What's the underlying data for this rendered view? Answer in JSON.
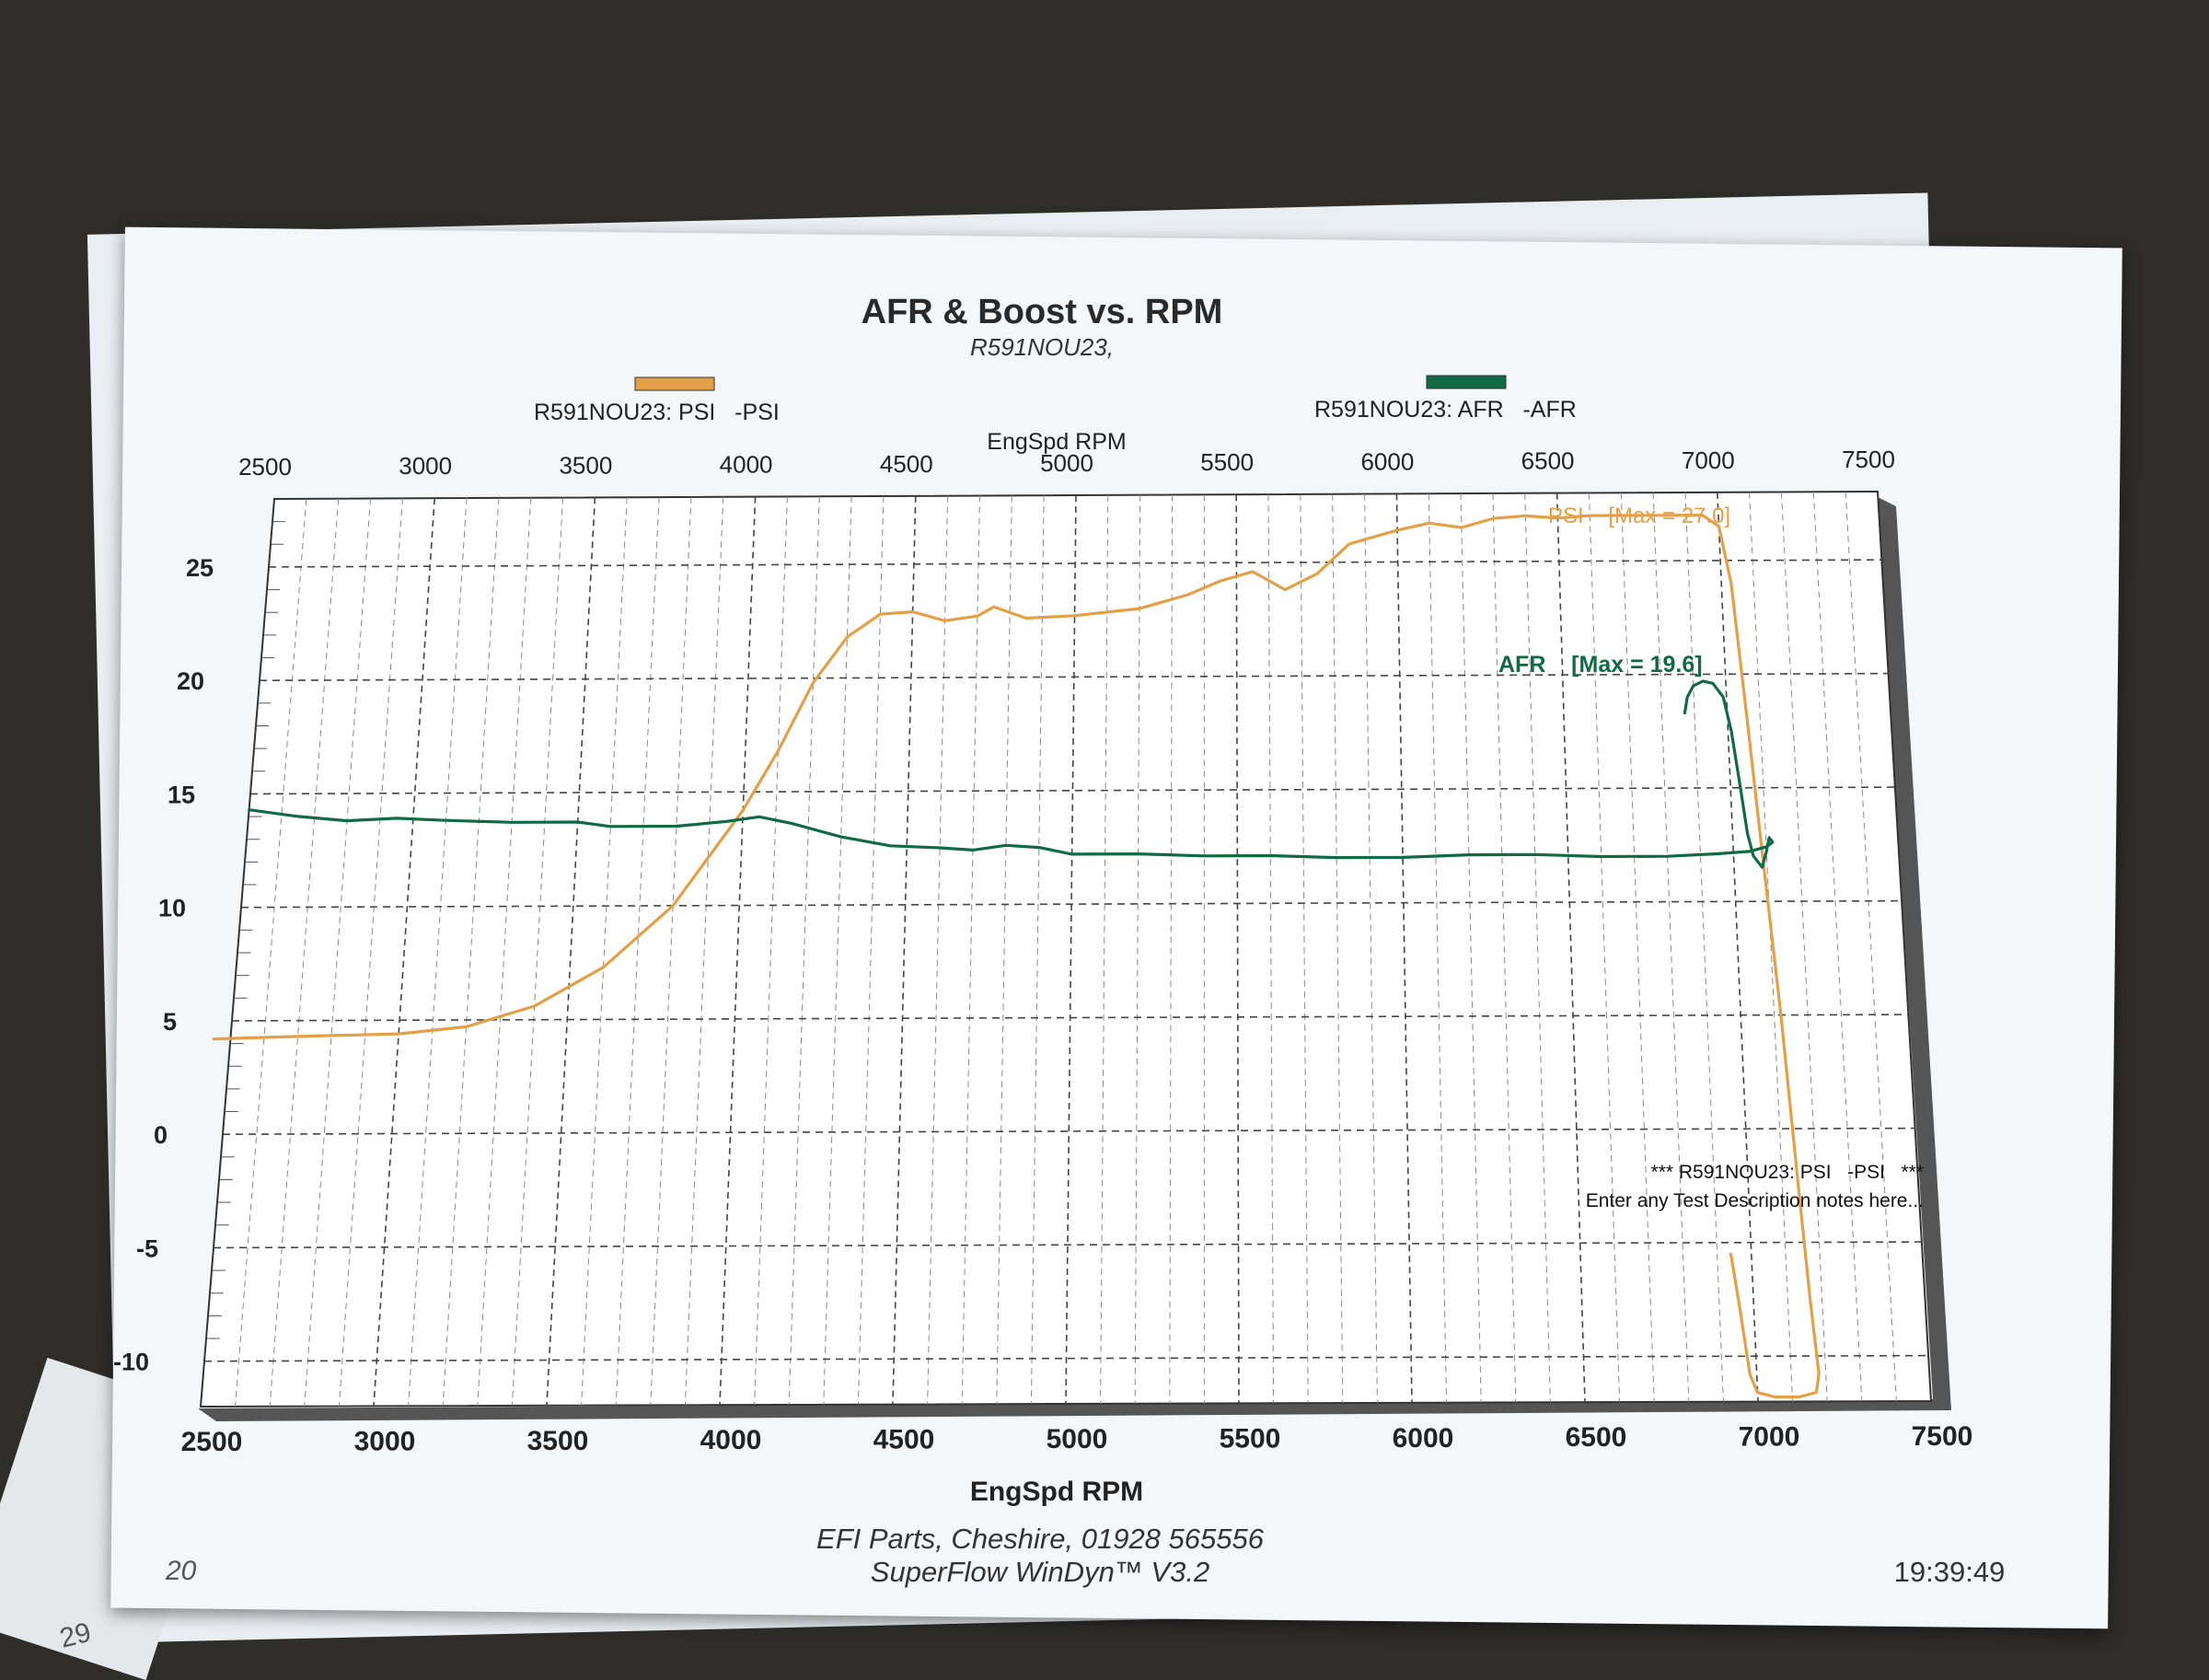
{
  "chart_data": {
    "type": "line",
    "title": "AFR & Boost vs. RPM",
    "subtitle": "R591NOU23,",
    "legend": [
      {
        "name": "R591NOU23: PSI   -PSI",
        "color": "#e3a047"
      },
      {
        "name": "R591NOU23: AFR   -AFR",
        "color": "#0f6a45"
      }
    ],
    "xlabel": "EngSpd RPM",
    "xlabel_top": "EngSpd RPM",
    "xlim": [
      2500,
      7500
    ],
    "ylim": [
      -12,
      28
    ],
    "x_ticks": [
      "2500",
      "3000",
      "3500",
      "4000",
      "4500",
      "5000",
      "5500",
      "6000",
      "6500",
      "7000",
      "7500"
    ],
    "y_ticks": [
      "25",
      "20",
      "15",
      "10",
      "5",
      "0",
      "-5",
      "-10"
    ],
    "grid": true,
    "series": [
      {
        "name": "PSI",
        "color": "#e3a047",
        "points": [
          [
            2450,
            4.2
          ],
          [
            2700,
            4.3
          ],
          [
            3000,
            4.4
          ],
          [
            3200,
            4.7
          ],
          [
            3400,
            5.6
          ],
          [
            3600,
            7.3
          ],
          [
            3800,
            10.0
          ],
          [
            4000,
            14.2
          ],
          [
            4100,
            16.8
          ],
          [
            4200,
            19.8
          ],
          [
            4300,
            21.8
          ],
          [
            4400,
            22.8
          ],
          [
            4500,
            22.9
          ],
          [
            4600,
            22.5
          ],
          [
            4700,
            22.7
          ],
          [
            4750,
            23.1
          ],
          [
            4850,
            22.6
          ],
          [
            5000,
            22.7
          ],
          [
            5200,
            23.0
          ],
          [
            5350,
            23.6
          ],
          [
            5450,
            24.2
          ],
          [
            5550,
            24.6
          ],
          [
            5650,
            23.8
          ],
          [
            5750,
            24.5
          ],
          [
            5850,
            25.8
          ],
          [
            6000,
            26.4
          ],
          [
            6100,
            26.7
          ],
          [
            6200,
            26.5
          ],
          [
            6300,
            26.9
          ],
          [
            6400,
            27.0
          ],
          [
            6500,
            26.9
          ],
          [
            6600,
            27.0
          ],
          [
            6800,
            27.0
          ],
          [
            6950,
            27.0
          ],
          [
            7000,
            26.5
          ],
          [
            7030,
            24.0
          ],
          [
            7060,
            18.0
          ],
          [
            7090,
            11.5
          ],
          [
            7120,
            5.0
          ],
          [
            7145,
            -2.0
          ],
          [
            7165,
            -7.5
          ],
          [
            7180,
            -10.8
          ],
          [
            7170,
            -11.6
          ],
          [
            7120,
            -11.8
          ],
          [
            7050,
            -11.8
          ],
          [
            7000,
            -11.6
          ],
          [
            6980,
            -10.8
          ],
          [
            6960,
            -8.0
          ],
          [
            6940,
            -5.5
          ]
        ],
        "max_label": "PSI    [Max = 27.0]"
      },
      {
        "name": "AFR",
        "color": "#0f6a45",
        "points": [
          [
            2500,
            14.3
          ],
          [
            2650,
            14.0
          ],
          [
            2800,
            13.8
          ],
          [
            2950,
            13.9
          ],
          [
            3100,
            13.8
          ],
          [
            3300,
            13.7
          ],
          [
            3500,
            13.7
          ],
          [
            3600,
            13.5
          ],
          [
            3800,
            13.5
          ],
          [
            3950,
            13.7
          ],
          [
            4050,
            13.9
          ],
          [
            4150,
            13.6
          ],
          [
            4300,
            13.0
          ],
          [
            4450,
            12.6
          ],
          [
            4600,
            12.5
          ],
          [
            4700,
            12.4
          ],
          [
            4800,
            12.6
          ],
          [
            4900,
            12.5
          ],
          [
            5000,
            12.2
          ],
          [
            5200,
            12.2
          ],
          [
            5400,
            12.1
          ],
          [
            5600,
            12.1
          ],
          [
            5800,
            12.0
          ],
          [
            6000,
            12.0
          ],
          [
            6200,
            12.1
          ],
          [
            6400,
            12.1
          ],
          [
            6600,
            12.0
          ],
          [
            6800,
            12.0
          ],
          [
            6950,
            12.1
          ],
          [
            7050,
            12.2
          ],
          [
            7100,
            12.4
          ],
          [
            7120,
            12.6
          ],
          [
            7110,
            12.8
          ],
          [
            7100,
            12.2
          ],
          [
            7085,
            11.5
          ],
          [
            7060,
            12.0
          ],
          [
            7045,
            13.0
          ],
          [
            7030,
            15.0
          ],
          [
            7010,
            17.5
          ],
          [
            6990,
            19.0
          ],
          [
            6960,
            19.6
          ],
          [
            6930,
            19.7
          ],
          [
            6900,
            19.5
          ],
          [
            6880,
            19.0
          ],
          [
            6870,
            18.3
          ]
        ],
        "max_label": "AFR    [Max = 19.6]"
      }
    ],
    "notes": {
      "line1": "*** R591NOU23: PSI   -PSI   ***",
      "line2": "Enter any Test Description notes here..."
    }
  },
  "footer": {
    "company": "EFI Parts, Cheshire, 01928 565556",
    "software": "SuperFlow WinDyn™ V3.2",
    "time": "19:39:49",
    "left_fragment": "20",
    "corner_fragment": "29"
  }
}
